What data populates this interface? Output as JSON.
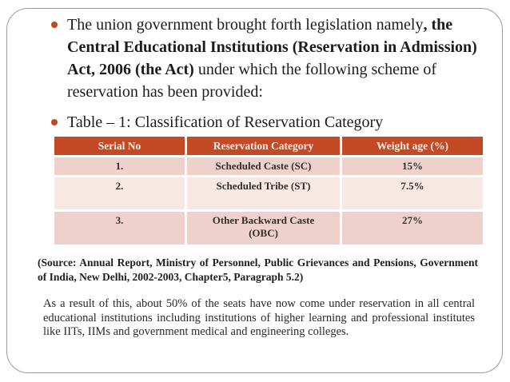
{
  "slide": {
    "border_color": "#9b9b9b",
    "accent_color": "#c3471d"
  },
  "bullets": [
    {
      "segments": [
        {
          "text": "The union government brought forth legislation namely",
          "bold": false
        },
        {
          "text": ", the Central Educational Institutions (Reservation in Admission) Act, 2006 (the Act)",
          "bold": true
        },
        {
          "text": " under which the following scheme of reservation has been provided:",
          "bold": false
        }
      ]
    },
    {
      "segments": [
        {
          "text": "Table – 1: Classification of Reservation Category",
          "bold": false
        }
      ]
    }
  ],
  "table": {
    "headers": [
      "Serial No",
      "Reservation Category",
      "Weight age (%)"
    ],
    "rows": [
      [
        "1.",
        "Scheduled Caste (SC)",
        "15%"
      ],
      [
        "2.",
        "Scheduled Tribe (ST)",
        "7.5%"
      ],
      [
        "3.",
        "Other Backward Caste (OBC)",
        "27%"
      ]
    ],
    "header_bg": "#c44a26",
    "header_text_color": "#f8ece3",
    "row_color_a": "#eed1cb",
    "row_color_b": "#f7e8e4"
  },
  "source_note": "(Source: Annual Report, Ministry of Personnel, Public Grievances and Pensions, Government of India, New Delhi, 2002-2003, Chapter5, Paragraph 5.2)",
  "result_paragraph": "As a result of this, about 50% of the seats have now come under reservation in all central educational institutions including institutions of higher learning and professional institutes like IITs, IIMs and government medical and engineering colleges."
}
